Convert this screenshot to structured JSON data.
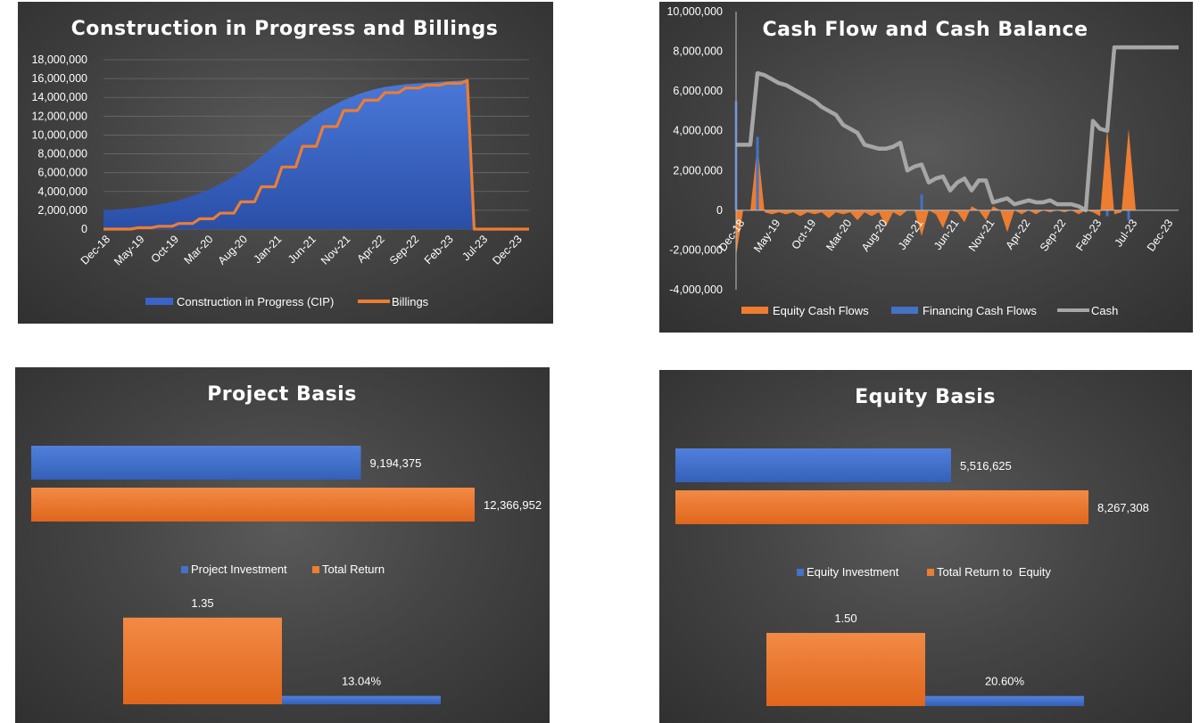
{
  "chart_data": [
    {
      "id": "cip",
      "type": "area",
      "title": "Construction in Progress and Billings",
      "ylim": [
        0,
        18000000
      ],
      "yticks": [
        "0",
        "2,000,000",
        "4,000,000",
        "6,000,000",
        "8,000,000",
        "10,000,000",
        "12,000,000",
        "14,000,000",
        "16,000,000",
        "18,000,000"
      ],
      "xticks": [
        "Dec-18",
        "May-19",
        "Oct-19",
        "Mar-20",
        "Aug-20",
        "Jan-21",
        "Jun-21",
        "Nov-21",
        "Apr-22",
        "Sep-22",
        "Feb-23",
        "Jul-23",
        "Dec-23"
      ],
      "legend_position": "bottom",
      "grid": true,
      "series": [
        {
          "name": "Construction in Progress (CIP)",
          "type": "area",
          "color": "#3a64c8",
          "values": [
            2000000,
            2050000,
            2100000,
            2150000,
            2200000,
            2300000,
            2400000,
            2500000,
            2600000,
            2750000,
            2900000,
            3050000,
            3300000,
            3550000,
            3800000,
            4100000,
            4450000,
            4800000,
            5200000,
            5600000,
            6100000,
            6600000,
            7100000,
            7700000,
            8300000,
            8900000,
            9500000,
            10050000,
            10600000,
            11100000,
            11600000,
            12100000,
            12550000,
            12950000,
            13350000,
            13700000,
            14000000,
            14300000,
            14550000,
            14750000,
            14950000,
            15100000,
            15200000,
            15300000,
            15400000,
            15450000,
            15500000,
            15550000,
            15600000,
            15650000,
            15700000,
            15750000,
            15800000,
            15800000,
            0,
            0,
            0,
            0,
            0,
            0,
            0,
            0,
            0
          ]
        },
        {
          "name": "Billings",
          "type": "step",
          "color": "#ed7d31",
          "values": [
            0,
            0,
            0,
            0,
            0,
            150000,
            150000,
            150000,
            300000,
            300000,
            300000,
            600000,
            600000,
            600000,
            1100000,
            1100000,
            1100000,
            1700000,
            1700000,
            1700000,
            2900000,
            2900000,
            2900000,
            4500000,
            4500000,
            4500000,
            6600000,
            6600000,
            6600000,
            8800000,
            8800000,
            8800000,
            10900000,
            10900000,
            10900000,
            12600000,
            12600000,
            12600000,
            13700000,
            13700000,
            13700000,
            14500000,
            14500000,
            14500000,
            15000000,
            15000000,
            15000000,
            15300000,
            15300000,
            15300000,
            15500000,
            15500000,
            15500000,
            15800000,
            0,
            0,
            0,
            0,
            0,
            0,
            0,
            0,
            0
          ]
        }
      ]
    },
    {
      "id": "cashflow",
      "type": "area",
      "title": "Cash Flow and Cash Balance",
      "ylim": [
        -4000000,
        10000000
      ],
      "yticks": [
        "-4,000,000",
        "-2,000,000",
        "0",
        "2,000,000",
        "4,000,000",
        "6,000,000",
        "8,000,000",
        "10,000,000"
      ],
      "xticks": [
        "Dec-18",
        "May-19",
        "Oct-19",
        "Mar-20",
        "Aug-20",
        "Jan-21",
        "Jun-21",
        "Nov-21",
        "Apr-22",
        "Sep-22",
        "Feb-23",
        "Jul-23",
        "Dec-23"
      ],
      "legend_position": "bottom",
      "grid": false,
      "series": [
        {
          "name": "Equity Cash Flows",
          "type": "area",
          "color": "#ed7d31",
          "values": [
            -2300000,
            0,
            0,
            3300000,
            -100000,
            -200000,
            -100000,
            -200000,
            -100000,
            -300000,
            -100000,
            -200000,
            -100000,
            -400000,
            -100000,
            -200000,
            -100000,
            -500000,
            -100000,
            -300000,
            -100000,
            -800000,
            -100000,
            -300000,
            0,
            0,
            -1300000,
            0,
            -200000,
            -900000,
            0,
            -100000,
            -600000,
            200000,
            0,
            -500000,
            200000,
            0,
            -1100000,
            0,
            -200000,
            0,
            -200000,
            0,
            -100000,
            0,
            -100000,
            0,
            -200000,
            0,
            -100000,
            -300000,
            4100000,
            -200000,
            -100000,
            4100000,
            0,
            0,
            0,
            0,
            0,
            0,
            0
          ]
        },
        {
          "name": "Financing Cash Flows",
          "type": "bar",
          "color": "#4472c4",
          "values": [
            5500000,
            0,
            0,
            3700000,
            0,
            0,
            0,
            0,
            0,
            0,
            0,
            0,
            0,
            0,
            0,
            0,
            0,
            0,
            0,
            0,
            0,
            0,
            0,
            0,
            0,
            0,
            800000,
            0,
            0,
            0,
            0,
            0,
            0,
            0,
            0,
            0,
            0,
            0,
            0,
            0,
            0,
            0,
            0,
            0,
            0,
            0,
            0,
            0,
            0,
            0,
            0,
            0,
            -300000,
            0,
            0,
            -500000,
            0,
            0,
            0,
            0,
            0,
            0,
            0
          ]
        },
        {
          "name": "Cash",
          "type": "line",
          "color": "#a6a6a6",
          "values": [
            3300000,
            3300000,
            3300000,
            6900000,
            6800000,
            6600000,
            6400000,
            6300000,
            6100000,
            5900000,
            5700000,
            5500000,
            5200000,
            5000000,
            4800000,
            4300000,
            4100000,
            3900000,
            3300000,
            3200000,
            3100000,
            3100000,
            3200000,
            3400000,
            2000000,
            2200000,
            2300000,
            1400000,
            1600000,
            1700000,
            1000000,
            1400000,
            1600000,
            1000000,
            1500000,
            1500000,
            400000,
            500000,
            600000,
            300000,
            400000,
            500000,
            400000,
            400000,
            500000,
            300000,
            300000,
            300000,
            200000,
            0,
            4500000,
            4100000,
            4000000,
            8200000,
            8200000,
            8200000,
            8200000,
            8200000,
            8200000,
            8200000,
            8200000,
            8200000,
            8200000
          ]
        }
      ]
    },
    {
      "id": "project",
      "type": "bar",
      "title": "Project Basis",
      "orientation": "horizontal",
      "categories": [
        "Project Investment",
        "Total Return"
      ],
      "values": [
        9194375,
        12366952
      ],
      "labels": [
        "9,194,375",
        "12,366,952"
      ],
      "colors": [
        "#4472c4",
        "#ed7d31"
      ],
      "legend": [
        "Project Investment",
        "Total Return"
      ],
      "ratio": {
        "label": "1.35",
        "value": 1.35,
        "color": "#ed7d31"
      },
      "irr": {
        "label": "13.04%",
        "value": 13.04,
        "color": "#4472c4"
      }
    },
    {
      "id": "equity",
      "type": "bar",
      "title": "Equity Basis",
      "orientation": "horizontal",
      "categories": [
        "Equity Investment",
        "Total Return to  Equity"
      ],
      "values": [
        5516625,
        8267308
      ],
      "labels": [
        "5,516,625",
        "8,267,308"
      ],
      "colors": [
        "#4472c4",
        "#ed7d31"
      ],
      "legend": [
        "Equity Investment",
        "Total Return to  Equity"
      ],
      "ratio": {
        "label": "1.50",
        "value": 1.5,
        "color": "#ed7d31"
      },
      "irr": {
        "label": "20.60%",
        "value": 20.6,
        "color": "#4472c4"
      }
    }
  ]
}
